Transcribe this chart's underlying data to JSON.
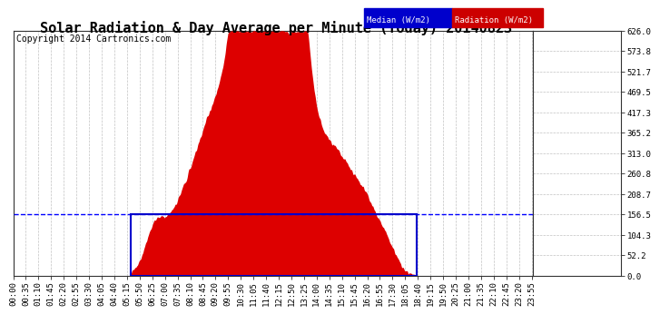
{
  "title": "Solar Radiation & Day Average per Minute (Today) 20140823",
  "copyright": "Copyright 2014 Cartronics.com",
  "yticks": [
    0.0,
    52.2,
    104.3,
    156.5,
    208.7,
    260.8,
    313.0,
    365.2,
    417.3,
    469.5,
    521.7,
    573.8,
    626.0
  ],
  "ymax": 626.0,
  "ymin": 0.0,
  "legend_median_color": "#0000cc",
  "legend_median_label": "Median (W/m2)",
  "legend_radiation_color": "#cc0000",
  "legend_radiation_label": "Radiation (W/m2)",
  "bar_color": "#dd0000",
  "median_line_color": "#0000ff",
  "background_color": "#ffffff",
  "grid_color": "#bbbbbb",
  "title_fontsize": 11,
  "copyright_fontsize": 7,
  "tick_fontsize": 6.5,
  "box_color": "#0000cc",
  "total_minutes": 1440,
  "sunrise_minute": 326,
  "sunset_minute": 1116,
  "median_value": 156.5,
  "peak_value": 626.0
}
